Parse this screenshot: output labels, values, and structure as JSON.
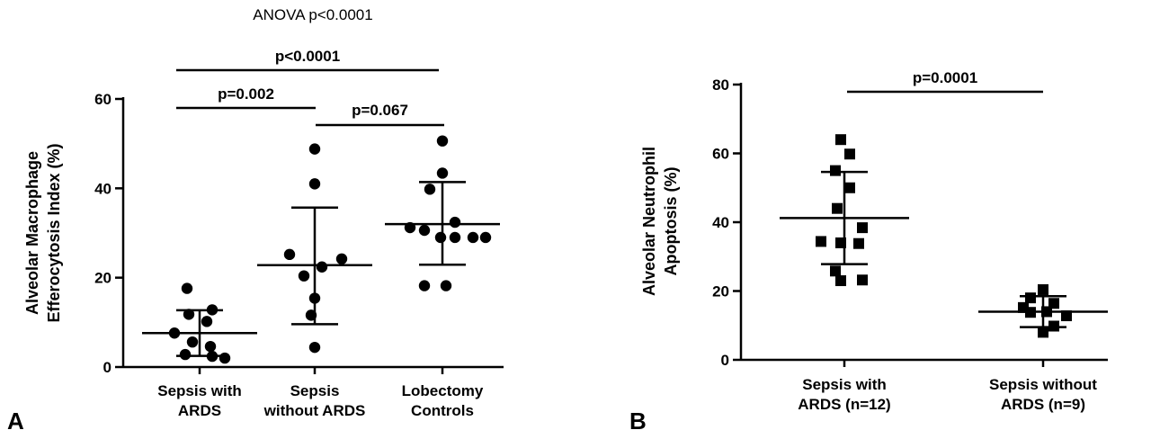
{
  "chart_data": [
    {
      "panel_label": "A",
      "type": "scatter",
      "title": "ANOVA p<0.0001",
      "ylabel_lines": [
        "Alveolar Macrophage",
        "Efferocytosis Index (%)"
      ],
      "ylim": [
        0,
        60
      ],
      "yticks": [
        0,
        20,
        40,
        60
      ],
      "categories": [
        {
          "label_lines": [
            "Sepsis with",
            "ARDS"
          ],
          "values": [
            17.6,
            12.8,
            11.8,
            10.2,
            7.6,
            5.6,
            4.6,
            2.8,
            2.4,
            2.0
          ],
          "mean": 7.6,
          "sd_low": 2.5,
          "sd_high": 12.7
        },
        {
          "label_lines": [
            "Sepsis",
            "without ARDS"
          ],
          "values": [
            48.8,
            41.0,
            25.2,
            24.2,
            22.4,
            20.4,
            15.4,
            11.6,
            4.4
          ],
          "mean": 22.8,
          "sd_low": 9.6,
          "sd_high": 35.7
        },
        {
          "label_lines": [
            "Lobectomy",
            "Controls"
          ],
          "values": [
            50.6,
            43.4,
            39.8,
            32.4,
            31.2,
            30.6,
            29.0,
            29.0,
            29.0,
            29.0,
            18.2,
            18.2
          ],
          "mean": 32.0,
          "sd_low": 22.9,
          "sd_high": 41.4
        }
      ],
      "comparisons": [
        {
          "label": "p<0.0001",
          "from": 0,
          "to": 2
        },
        {
          "label": "p=0.002",
          "from": 0,
          "to": 1
        },
        {
          "label": "p=0.067",
          "from": 1,
          "to": 2
        }
      ],
      "marker": "circle"
    },
    {
      "panel_label": "B",
      "type": "scatter",
      "ylabel_lines": [
        "Alveolar Neutrophil",
        "Apoptosis (%)"
      ],
      "ylim": [
        0,
        80
      ],
      "yticks": [
        0,
        20,
        40,
        60,
        80
      ],
      "categories": [
        {
          "label_lines": [
            "Sepsis with",
            "ARDS (n=12)"
          ],
          "values": [
            64.0,
            59.8,
            55.0,
            50.0,
            44.0,
            38.4,
            34.4,
            34.0,
            33.8,
            25.8,
            23.2,
            23.0
          ],
          "mean": 41.2,
          "sd_low": 27.8,
          "sd_high": 54.6
        },
        {
          "label_lines": [
            "Sepsis without",
            "ARDS (n=9)"
          ],
          "values": [
            20.4,
            18.0,
            16.4,
            15.2,
            14.0,
            13.8,
            12.8,
            9.8,
            8.0
          ],
          "mean": 14.0,
          "sd_low": 9.5,
          "sd_high": 18.5
        }
      ],
      "comparisons": [
        {
          "label": "p=0.0001",
          "from": 0,
          "to": 1
        }
      ],
      "marker": "square"
    }
  ]
}
